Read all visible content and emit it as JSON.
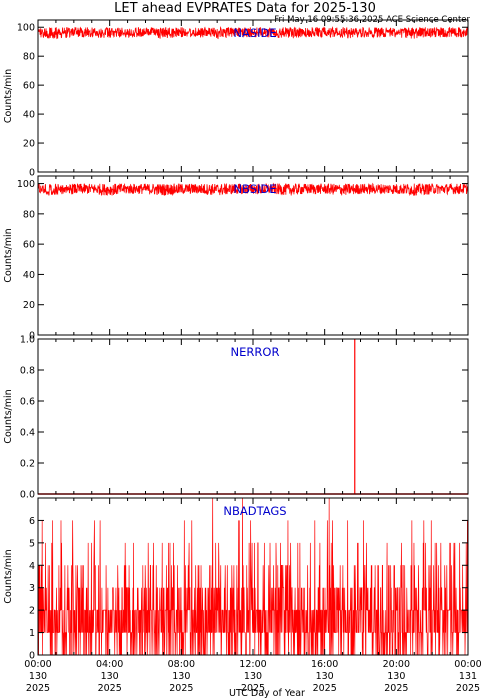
{
  "header": {
    "title": "LET ahead EVPRATES Data for 2025-130",
    "timestamp": "Fri May 16 09:55:36 2025 ACE Science Center"
  },
  "colors": {
    "series": "#ff0000",
    "panel_label": "#0000cc",
    "axes": "#000000",
    "background": "#ffffff"
  },
  "chart_data": [
    {
      "type": "line",
      "name": "NASIDE",
      "ylabel": "Counts/min",
      "ylim": [
        0,
        105
      ],
      "yticks": [
        "0",
        "20",
        "40",
        "60",
        "80",
        "100"
      ],
      "ytick_values": [
        0,
        20,
        40,
        60,
        80,
        100
      ],
      "xlim": [
        0,
        24
      ],
      "description": "1-minute samples fluctuating between about 92 and 100 counts/min all day (mean ~97)",
      "series": [
        {
          "x_hours": [
            0,
            1,
            2,
            3,
            4,
            5,
            6,
            7,
            8,
            9,
            10,
            11,
            12,
            13,
            14,
            15,
            16,
            17,
            18,
            19,
            20,
            21,
            22,
            23,
            24
          ],
          "min": [
            93,
            92,
            93,
            93,
            92,
            93,
            93,
            92,
            93,
            93,
            92,
            93,
            93,
            93,
            92,
            93,
            93,
            92,
            93,
            93,
            93,
            92,
            93,
            93,
            93
          ],
          "max": [
            100,
            100,
            100,
            100,
            100,
            100,
            100,
            100,
            100,
            100,
            100,
            100,
            100,
            100,
            100,
            100,
            100,
            100,
            100,
            100,
            100,
            100,
            100,
            100,
            100
          ]
        }
      ]
    },
    {
      "type": "line",
      "name": "NBSIDE",
      "ylabel": "Counts/min",
      "ylim": [
        0,
        105
      ],
      "yticks": [
        "0",
        "20",
        "40",
        "60",
        "80",
        "100"
      ],
      "ytick_values": [
        0,
        20,
        40,
        60,
        80,
        100
      ],
      "xlim": [
        0,
        24
      ],
      "description": "1-minute samples fluctuating between about 92 and 100 counts/min all day (mean ~97)",
      "series": [
        {
          "x_hours": [
            0,
            1,
            2,
            3,
            4,
            5,
            6,
            7,
            8,
            9,
            10,
            11,
            12,
            13,
            14,
            15,
            16,
            17,
            18,
            19,
            20,
            21,
            22,
            23,
            24
          ],
          "min": [
            93,
            92,
            93,
            93,
            92,
            93,
            93,
            92,
            93,
            93,
            92,
            93,
            93,
            93,
            92,
            93,
            93,
            92,
            93,
            93,
            93,
            92,
            93,
            93,
            93
          ],
          "max": [
            100,
            100,
            100,
            100,
            100,
            100,
            100,
            100,
            100,
            100,
            100,
            100,
            100,
            100,
            100,
            100,
            100,
            100,
            100,
            100,
            100,
            100,
            100,
            100,
            100
          ]
        }
      ]
    },
    {
      "type": "line",
      "name": "NERROR",
      "ylabel": "Counts/min",
      "ylim": [
        0,
        1.0
      ],
      "yticks": [
        "0.0",
        "0.2",
        "0.4",
        "0.6",
        "0.8",
        "1.0"
      ],
      "ytick_values": [
        0,
        0.2,
        0.4,
        0.6,
        0.8,
        1.0
      ],
      "xlim": [
        0,
        24
      ],
      "description": "zero all day except a single spike to 1 near 17:40",
      "baseline": 0,
      "spikes": [
        {
          "x_hours": 17.68,
          "y": 1
        }
      ]
    },
    {
      "type": "line",
      "name": "NBADTAGS",
      "ylabel": "Counts/min",
      "ylim": [
        0,
        7
      ],
      "yticks": [
        "0",
        "1",
        "2",
        "3",
        "4",
        "5",
        "6"
      ],
      "ytick_values": [
        0,
        1,
        2,
        3,
        4,
        5,
        6
      ],
      "xlim": [
        0,
        24
      ],
      "description": "integer 1-minute counts, mostly 0-3, frequent excursions to 4-6, peaks of 7 near 09:45, 11:25 and 16:15",
      "peaks": [
        {
          "x_hours": 9.75,
          "y": 7
        },
        {
          "x_hours": 11.42,
          "y": 7
        },
        {
          "x_hours": 16.25,
          "y": 7
        }
      ]
    }
  ],
  "x_axis": {
    "label": "UTC Day of Year",
    "ticks": [
      {
        "time": "00:00",
        "doy": "130",
        "year": "2025",
        "hour": 0
      },
      {
        "time": "04:00",
        "doy": "130",
        "year": "2025",
        "hour": 4
      },
      {
        "time": "08:00",
        "doy": "130",
        "year": "2025",
        "hour": 8
      },
      {
        "time": "12:00",
        "doy": "130",
        "year": "2025",
        "hour": 12
      },
      {
        "time": "16:00",
        "doy": "130",
        "year": "2025",
        "hour": 16
      },
      {
        "time": "20:00",
        "doy": "130",
        "year": "2025",
        "hour": 20
      },
      {
        "time": "00:00",
        "doy": "131",
        "year": "2025",
        "hour": 24
      }
    ]
  }
}
